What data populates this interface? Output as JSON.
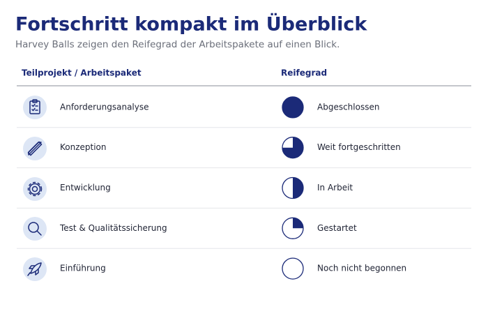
{
  "header": {
    "title": "Fortschritt kompakt im Überblick",
    "subtitle": "Harvey Balls zeigen den Reifegrad der Arbeitspakete auf einen Blick."
  },
  "table": {
    "columns": [
      "Teilprojekt / Arbeitspaket",
      "Reifegrad"
    ],
    "rows": [
      {
        "name": "Anforderungsanalyse",
        "progress": 100,
        "status": "Abgeschlossen"
      },
      {
        "name": "Konzeption",
        "progress": 75,
        "status": "Weit fortgeschritten"
      },
      {
        "name": "Entwicklung",
        "progress": 50,
        "status": "In Arbeit"
      },
      {
        "name": "Test & Qualitätssicherung",
        "progress": 25,
        "status": "Gestartet"
      },
      {
        "name": "Einführung",
        "progress": 0,
        "status": "Noch nicht begonnen"
      }
    ]
  }
}
